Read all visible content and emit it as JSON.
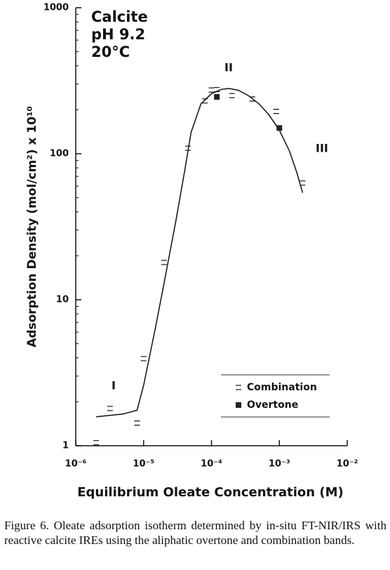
{
  "chart_data": {
    "type": "scatter",
    "title": [
      "Calcite",
      "pH 9.2",
      "20°C"
    ],
    "x_label": "Equilibrium Oleate Concentration (M)",
    "y_label": "Adsorption Density (mol/cm²) x 10¹⁰",
    "log_x": true,
    "log_y": true,
    "xlim": [
      1e-06,
      0.01
    ],
    "ylim": [
      1,
      1000
    ],
    "xticks": [
      {
        "value": 1e-06,
        "label": "10⁻⁶"
      },
      {
        "value": 1e-05,
        "label": "10⁻⁵"
      },
      {
        "value": 0.0001,
        "label": "10⁻⁴"
      },
      {
        "value": 0.001,
        "label": "10⁻³"
      },
      {
        "value": 0.01,
        "label": "10⁻²"
      }
    ],
    "yticks": [
      1,
      10,
      100,
      1000
    ],
    "legend": "lower right",
    "series": [
      {
        "name": "Combination",
        "marker": "dash",
        "color": "#222",
        "x": [
          2e-06,
          3.2e-06,
          8e-06,
          1e-05,
          2e-05,
          4.5e-05,
          8e-05,
          0.0001,
          0.00012,
          0.0002,
          0.0004,
          0.0009,
          0.0022
        ],
        "values": [
          1.05,
          1.8,
          1.43,
          3.95,
          18,
          109,
          230,
          273,
          275,
          250,
          237,
          195,
          63
        ]
      },
      {
        "name": "Overtone",
        "marker": "square",
        "color": "#222",
        "x": [
          0.00012,
          0.001
        ],
        "values": [
          245,
          150
        ]
      }
    ],
    "curve": {
      "color": "#111",
      "x": [
        2e-06,
        5e-06,
        8e-06,
        1e-05,
        1.5e-05,
        2e-05,
        3e-05,
        4e-05,
        5e-05,
        7e-05,
        0.0001,
        0.00014,
        0.00018,
        0.00025,
        0.00035,
        0.0005,
        0.0007,
        0.001,
        0.0014,
        0.0018,
        0.0022
      ],
      "values": [
        1.58,
        1.65,
        1.75,
        2.6,
        6.5,
        13,
        35,
        75,
        140,
        220,
        258,
        276,
        280,
        272,
        250,
        220,
        185,
        145,
        105,
        75,
        54
      ]
    },
    "annotations": [
      "I",
      "II",
      "III"
    ],
    "caption": "Figure 6. Oleate adsorption isotherm determined by in-situ FT-NIR/IRS with reactive calcite IREs using the aliphatic overtone and combination bands."
  }
}
